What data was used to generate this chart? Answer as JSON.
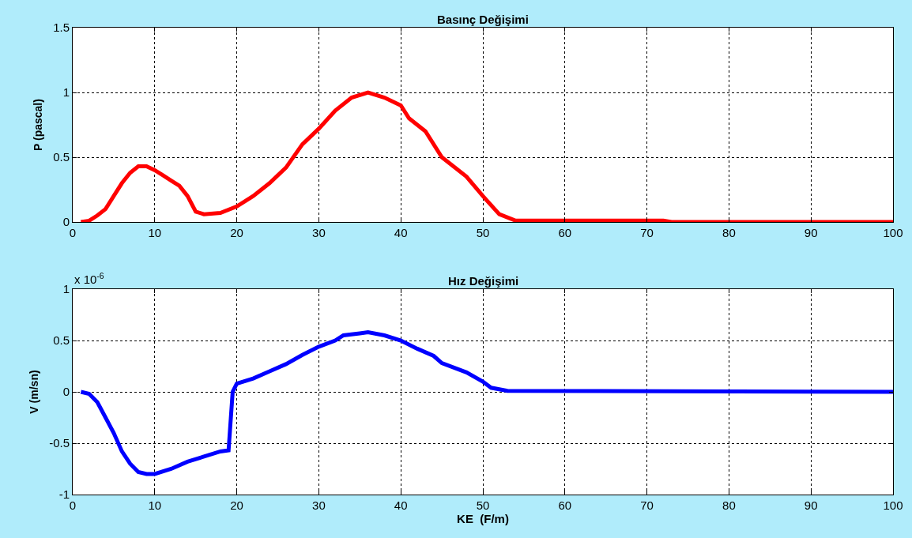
{
  "chart_data": [
    {
      "type": "line",
      "title": "Basınç Değişimi",
      "ylabel": "P (pascal)",
      "xlim": [
        0,
        100
      ],
      "xticks": [
        0,
        10,
        20,
        30,
        40,
        50,
        60,
        70,
        80,
        90,
        100
      ],
      "ylim": [
        0,
        1.5
      ],
      "yticks": [
        0,
        0.5,
        1,
        1.5
      ],
      "grid": true,
      "line_style": "solid",
      "series": [
        {
          "color": "#ff0000",
          "x": [
            1,
            2,
            3,
            4,
            5,
            6,
            7,
            8,
            9,
            10,
            11,
            12,
            13,
            14,
            15,
            16,
            18,
            20,
            22,
            24,
            26,
            28,
            30,
            32,
            34,
            36,
            38,
            40,
            41,
            43,
            45,
            48,
            50,
            52,
            54,
            60,
            72,
            73,
            100
          ],
          "values": [
            0,
            0.01,
            0.05,
            0.1,
            0.2,
            0.3,
            0.38,
            0.43,
            0.43,
            0.4,
            0.36,
            0.32,
            0.28,
            0.2,
            0.08,
            0.06,
            0.07,
            0.12,
            0.2,
            0.3,
            0.42,
            0.6,
            0.72,
            0.86,
            0.96,
            1.0,
            0.96,
            0.9,
            0.8,
            0.7,
            0.5,
            0.35,
            0.2,
            0.06,
            0.01,
            0.01,
            0.01,
            0,
            0
          ]
        }
      ]
    },
    {
      "type": "line",
      "title": "Hız Değişimi",
      "xlabel": "KE  (F/m)",
      "ylabel": "V (m/sn)",
      "annotations": [
        "x 10$^{-6}$"
      ],
      "xlim": [
        0,
        100
      ],
      "xticks": [
        0,
        10,
        20,
        30,
        40,
        50,
        60,
        70,
        80,
        90,
        100
      ],
      "ylim": [
        -1,
        1
      ],
      "yticks": [
        -1,
        -0.5,
        0,
        0.5,
        1
      ],
      "grid": true,
      "line_style": "solid",
      "series": [
        {
          "color": "#0000ff",
          "x": [
            1,
            2,
            3,
            4,
            5,
            6,
            7,
            8,
            9,
            10,
            12,
            14,
            16,
            18,
            19,
            19.5,
            20,
            22,
            24,
            26,
            28,
            30,
            32,
            33,
            35,
            36,
            38,
            40,
            42,
            44,
            45,
            48,
            50,
            51,
            53,
            100
          ],
          "values": [
            0,
            -0.02,
            -0.1,
            -0.25,
            -0.4,
            -0.58,
            -0.7,
            -0.78,
            -0.8,
            -0.8,
            -0.75,
            -0.68,
            -0.63,
            -0.58,
            -0.57,
            0,
            0.08,
            0.13,
            0.2,
            0.27,
            0.36,
            0.44,
            0.5,
            0.55,
            0.57,
            0.58,
            0.55,
            0.5,
            0.42,
            0.35,
            0.28,
            0.19,
            0.1,
            0.04,
            0.01,
            0
          ]
        }
      ]
    }
  ]
}
